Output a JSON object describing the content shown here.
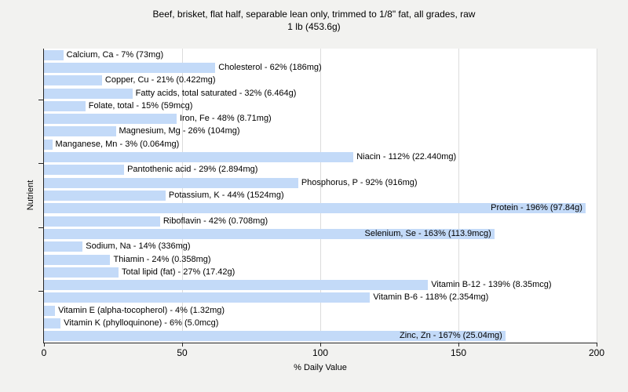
{
  "title": {
    "line1": "Beef, brisket, flat half, separable lean only, trimmed to 1/8\" fat, all grades, raw",
    "line2": "1 lb (453.6g)"
  },
  "axes": {
    "x_label": "% Daily Value",
    "y_label": "Nutrient",
    "x_ticks": [
      "0",
      "50",
      "100",
      "150",
      "200"
    ],
    "x_tick_values": [
      0,
      50,
      100,
      150,
      200
    ],
    "x_max": 200,
    "grid": "vertical"
  },
  "colors": {
    "bar_fill": "#c3daf8",
    "plot_bg": "#ffffff",
    "page_bg": "#f2f2f0",
    "gridline": "#dcdcdc",
    "axis": "#262626",
    "text": "#000000"
  },
  "chart_data": {
    "type": "bar",
    "orientation": "horizontal",
    "title": "Beef, brisket, flat half, separable lean only, trimmed to 1/8\" fat, all grades, raw 1 lb (453.6g)",
    "xlabel": "% Daily Value",
    "ylabel": "Nutrient",
    "xlim": [
      0,
      200
    ],
    "legend": "none",
    "nutrients": [
      {
        "name": "Calcium, Ca",
        "percent_dv": 7,
        "amount": "73mg",
        "label": "Calcium, Ca - 7% (73mg)"
      },
      {
        "name": "Cholesterol",
        "percent_dv": 62,
        "amount": "186mg",
        "label": "Cholesterol - 62% (186mg)"
      },
      {
        "name": "Copper, Cu",
        "percent_dv": 21,
        "amount": "0.422mg",
        "label": "Copper, Cu - 21% (0.422mg)"
      },
      {
        "name": "Fatty acids, total saturated",
        "percent_dv": 32,
        "amount": "6.464g",
        "label": "Fatty acids, total saturated - 32% (6.464g)"
      },
      {
        "name": "Folate, total",
        "percent_dv": 15,
        "amount": "59mcg",
        "label": "Folate, total - 15% (59mcg)"
      },
      {
        "name": "Iron, Fe",
        "percent_dv": 48,
        "amount": "8.71mg",
        "label": "Iron, Fe - 48% (8.71mg)"
      },
      {
        "name": "Magnesium, Mg",
        "percent_dv": 26,
        "amount": "104mg",
        "label": "Magnesium, Mg - 26% (104mg)"
      },
      {
        "name": "Manganese, Mn",
        "percent_dv": 3,
        "amount": "0.064mg",
        "label": "Manganese, Mn - 3% (0.064mg)"
      },
      {
        "name": "Niacin",
        "percent_dv": 112,
        "amount": "22.440mg",
        "label": "Niacin - 112% (22.440mg)"
      },
      {
        "name": "Pantothenic acid",
        "percent_dv": 29,
        "amount": "2.894mg",
        "label": "Pantothenic acid - 29% (2.894mg)"
      },
      {
        "name": "Phosphorus, P",
        "percent_dv": 92,
        "amount": "916mg",
        "label": "Phosphorus, P - 92% (916mg)"
      },
      {
        "name": "Potassium, K",
        "percent_dv": 44,
        "amount": "1524mg",
        "label": "Potassium, K - 44% (1524mg)"
      },
      {
        "name": "Protein",
        "percent_dv": 196,
        "amount": "97.84g",
        "label": "Protein - 196% (97.84g)"
      },
      {
        "name": "Riboflavin",
        "percent_dv": 42,
        "amount": "0.708mg",
        "label": "Riboflavin - 42% (0.708mg)"
      },
      {
        "name": "Selenium, Se",
        "percent_dv": 163,
        "amount": "113.9mcg",
        "label": "Selenium, Se - 163% (113.9mcg)"
      },
      {
        "name": "Sodium, Na",
        "percent_dv": 14,
        "amount": "336mg",
        "label": "Sodium, Na - 14% (336mg)"
      },
      {
        "name": "Thiamin",
        "percent_dv": 24,
        "amount": "0.358mg",
        "label": "Thiamin - 24% (0.358mg)"
      },
      {
        "name": "Total lipid (fat)",
        "percent_dv": 27,
        "amount": "17.42g",
        "label": "Total lipid (fat) - 27% (17.42g)"
      },
      {
        "name": "Vitamin B-12",
        "percent_dv": 139,
        "amount": "8.35mcg",
        "label": "Vitamin B-12 - 139% (8.35mcg)"
      },
      {
        "name": "Vitamin B-6",
        "percent_dv": 118,
        "amount": "2.354mg",
        "label": "Vitamin B-6 - 118% (2.354mg)"
      },
      {
        "name": "Vitamin E (alpha-tocopherol)",
        "percent_dv": 4,
        "amount": "1.32mg",
        "label": "Vitamin E (alpha-tocopherol) - 4% (1.32mg)"
      },
      {
        "name": "Vitamin K (phylloquinone)",
        "percent_dv": 6,
        "amount": "5.0mcg",
        "label": "Vitamin K (phylloquinone) - 6% (5.0mcg)"
      },
      {
        "name": "Zinc, Zn",
        "percent_dv": 167,
        "amount": "25.04mg",
        "label": "Zinc, Zn - 167% (25.04mg)"
      }
    ]
  }
}
